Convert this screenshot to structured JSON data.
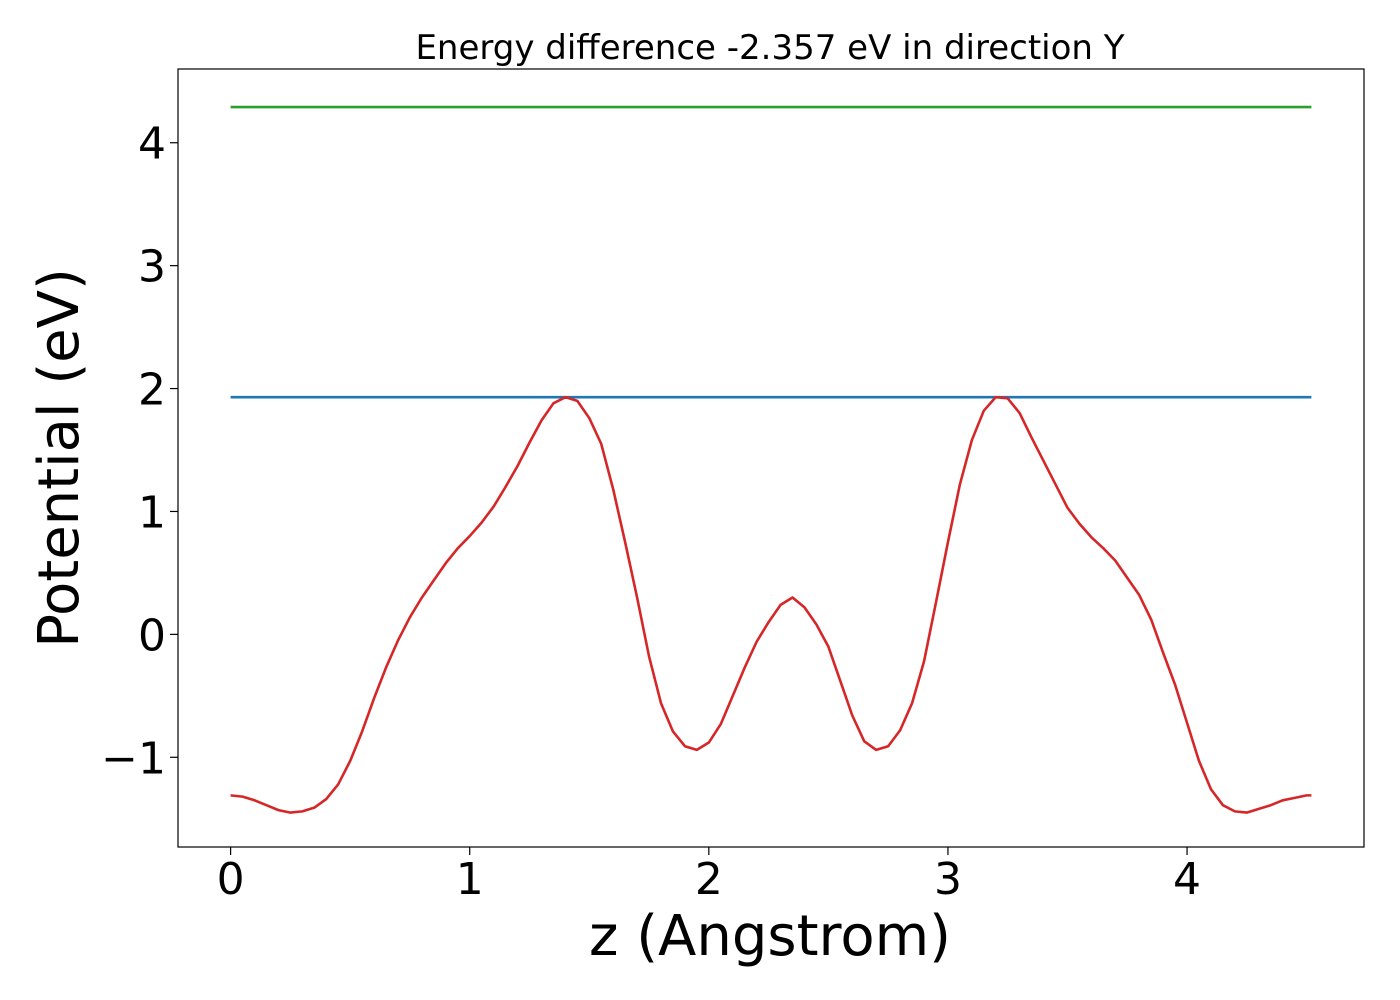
{
  "chart_data": {
    "type": "line",
    "title": "Energy difference -2.357 eV in direction Y",
    "xlabel": "z (Angstrom)",
    "ylabel": "Potential (eV)",
    "xlim": [
      -0.22,
      4.74
    ],
    "ylim": [
      -1.73,
      4.6
    ],
    "xticks": [
      0,
      1,
      2,
      3,
      4
    ],
    "xtick_labels": [
      "0",
      "1",
      "2",
      "3",
      "4"
    ],
    "yticks": [
      -1,
      0,
      1,
      2,
      3,
      4
    ],
    "ytick_labels": [
      "−1",
      "0",
      "1",
      "2",
      "3",
      "4"
    ],
    "grid": false,
    "series": [
      {
        "color": "#d62728",
        "x": [
          0.0,
          0.05,
          0.1,
          0.15,
          0.2,
          0.25,
          0.3,
          0.35,
          0.4,
          0.45,
          0.5,
          0.55,
          0.6,
          0.65,
          0.7,
          0.75,
          0.8,
          0.85,
          0.9,
          0.95,
          1.0,
          1.05,
          1.1,
          1.15,
          1.2,
          1.25,
          1.3,
          1.35,
          1.4,
          1.45,
          1.5,
          1.55,
          1.6,
          1.65,
          1.7,
          1.75,
          1.8,
          1.85,
          1.9,
          1.95,
          2.0,
          2.05,
          2.1,
          2.15,
          2.2,
          2.25,
          2.3,
          2.35,
          2.4,
          2.45,
          2.5,
          2.55,
          2.6,
          2.65,
          2.7,
          2.75,
          2.8,
          2.85,
          2.9,
          2.95,
          3.0,
          3.05,
          3.1,
          3.15,
          3.2,
          3.25,
          3.3,
          3.35,
          3.4,
          3.45,
          3.5,
          3.55,
          3.6,
          3.65,
          3.7,
          3.75,
          3.8,
          3.85,
          3.9,
          3.95,
          4.0,
          4.05,
          4.1,
          4.15,
          4.2,
          4.25,
          4.3,
          4.35,
          4.4,
          4.45,
          4.5,
          4.52
        ],
        "y": [
          -1.31,
          -1.32,
          -1.35,
          -1.39,
          -1.43,
          -1.45,
          -1.44,
          -1.41,
          -1.34,
          -1.22,
          -1.03,
          -0.79,
          -0.52,
          -0.27,
          -0.05,
          0.14,
          0.3,
          0.44,
          0.58,
          0.7,
          0.8,
          0.91,
          1.04,
          1.2,
          1.37,
          1.56,
          1.74,
          1.88,
          1.93,
          1.9,
          1.76,
          1.55,
          1.18,
          0.75,
          0.3,
          -0.18,
          -0.56,
          -0.79,
          -0.91,
          -0.94,
          -0.88,
          -0.73,
          -0.5,
          -0.27,
          -0.06,
          0.1,
          0.24,
          0.3,
          0.22,
          0.08,
          -0.1,
          -0.38,
          -0.66,
          -0.87,
          -0.94,
          -0.91,
          -0.78,
          -0.56,
          -0.22,
          0.26,
          0.75,
          1.22,
          1.58,
          1.82,
          1.93,
          1.92,
          1.8,
          1.6,
          1.41,
          1.22,
          1.03,
          0.9,
          0.79,
          0.7,
          0.6,
          0.46,
          0.32,
          0.12,
          -0.15,
          -0.41,
          -0.72,
          -1.03,
          -1.26,
          -1.39,
          -1.44,
          -1.45,
          -1.42,
          -1.39,
          -1.35,
          -1.33,
          -1.31,
          -1.31
        ]
      },
      {
        "color": "#1f77b4",
        "x": [
          0.0,
          4.52
        ],
        "y": [
          1.93,
          1.93
        ]
      },
      {
        "color": "#2ca02c",
        "x": [
          0.0,
          4.52
        ],
        "y": [
          4.29,
          4.29
        ]
      }
    ]
  }
}
